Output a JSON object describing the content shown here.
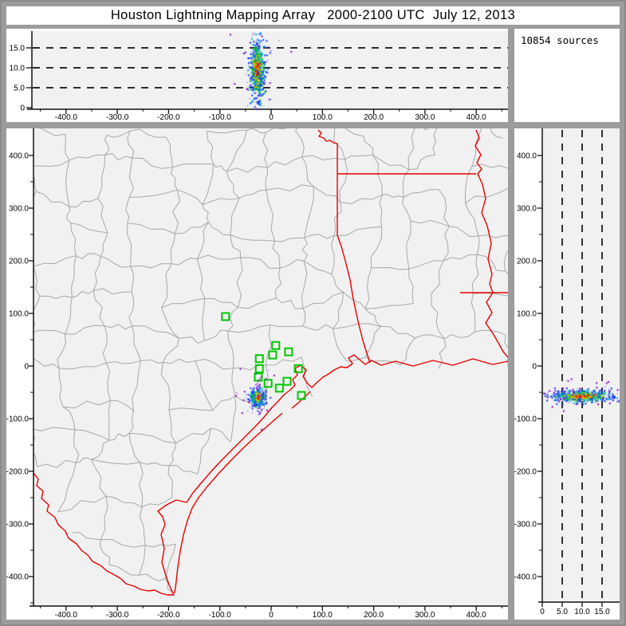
{
  "window": {
    "title": "Houston Lightning Mapping Array   2000-2100 UTC  July 12, 2013"
  },
  "sources_panel": {
    "label": "10854 sources",
    "count": 10854
  },
  "colors": {
    "plot_background": "#f1f1f1",
    "panel_background": "#ffffff",
    "frame_gray": "#9c9c9c",
    "county_line": "#a8a8a8",
    "state_border_red": "#e80000",
    "station_green": "#00c800",
    "axis_black": "#111111",
    "time_colormap": [
      "#8800cc",
      "#1133ee",
      "#00aadd",
      "#00c535",
      "#d8d800",
      "#ff9500",
      "#ee1500"
    ]
  },
  "chart_data": {
    "type": "scatter",
    "title": "Houston Lightning Mapping Array   2000-2100 UTC  July 12, 2013",
    "legend_position": "none",
    "grid": "dashed guides only",
    "panels": [
      {
        "id": "alt_vs_ew",
        "description": "Altitude (km) vs East-West distance (km): vertically elongated lightning source column near x=-28 km",
        "x_ticks": [
          {
            "v": -400,
            "t": "-400.0"
          },
          {
            "v": -300,
            "t": "-300.0"
          },
          {
            "v": -200,
            "t": "-200.0"
          },
          {
            "v": -100,
            "t": "-100.0"
          },
          {
            "v": 0,
            "t": "0"
          },
          {
            "v": 100,
            "t": "100.0"
          },
          {
            "v": 200,
            "t": "200.0"
          },
          {
            "v": 300,
            "t": "300.0"
          },
          {
            "v": 400,
            "t": "400.0"
          }
        ],
        "alt_ticks": [
          {
            "v": 0,
            "t": "0"
          },
          {
            "v": 5,
            "t": "5.0"
          },
          {
            "v": 10,
            "t": "10.0"
          },
          {
            "v": 15,
            "t": "15.0"
          }
        ],
        "dashed_alt_km": [
          5,
          10,
          15
        ],
        "x_range_km": [
          -465,
          462
        ],
        "alt_range_km": [
          0,
          19
        ],
        "cluster": {
          "x_km": -28,
          "alt_km": 9.6,
          "x_spread_km": 5.5,
          "alt_spread_km": 2.8,
          "n_points": 1400
        }
      },
      {
        "id": "sources_count",
        "text": "10854 sources",
        "value": 10854
      },
      {
        "id": "plan_view_map",
        "description": "Plan view, km east/north of array; gray county lines, red state/coast borders, green LMA station squares, lightning cluster near Houston",
        "x_ticks": [
          {
            "v": -400,
            "t": "-400.0"
          },
          {
            "v": -300,
            "t": "-300.0"
          },
          {
            "v": -200,
            "t": "-200.0"
          },
          {
            "v": -100,
            "t": "-100.0"
          },
          {
            "v": 0,
            "t": "0"
          },
          {
            "v": 100,
            "t": "100.0"
          },
          {
            "v": 200,
            "t": "200.0"
          },
          {
            "v": 300,
            "t": "300.0"
          },
          {
            "v": 400,
            "t": "400.0"
          }
        ],
        "y_ticks": [
          {
            "v": 400,
            "t": "400.0"
          },
          {
            "v": 300,
            "t": "300.0"
          },
          {
            "v": 200,
            "t": "200.0"
          },
          {
            "v": 100,
            "t": "100.0"
          },
          {
            "v": 0,
            "t": "0"
          },
          {
            "v": -100,
            "t": "-100.0"
          },
          {
            "v": -200,
            "t": "-200.0"
          },
          {
            "v": -300,
            "t": "-300.0"
          },
          {
            "v": -400,
            "t": "-400.0"
          }
        ],
        "x_range_km": [
          -463,
          462
        ],
        "y_range_km": [
          -456,
          451
        ],
        "stations_km": [
          [
            -89,
            94
          ],
          [
            9,
            39
          ],
          [
            34,
            27
          ],
          [
            3,
            21
          ],
          [
            -23,
            14
          ],
          [
            53,
            -5
          ],
          [
            -23,
            -5
          ],
          [
            -25,
            -21
          ],
          [
            31,
            -29
          ],
          [
            -6,
            -33
          ],
          [
            16,
            -42
          ],
          [
            59,
            -56
          ]
        ],
        "cluster": {
          "x_km": -28,
          "y_km": -58,
          "spread_km": 4.5,
          "n_points": 1200,
          "ns_trail_km": 30
        }
      },
      {
        "id": "alt_vs_ns",
        "description": "North-South distance (km) vs altitude (km): horizontally elongated lightning source layer near y=-56 km",
        "alt_ticks": [
          {
            "v": 0,
            "t": "0"
          },
          {
            "v": 5,
            "t": "5.0"
          },
          {
            "v": 10,
            "t": "10.0"
          },
          {
            "v": 15,
            "t": "15.0"
          }
        ],
        "y_ticks": [
          {
            "v": 400,
            "t": "400.0"
          },
          {
            "v": 300,
            "t": "300.0"
          },
          {
            "v": 200,
            "t": "200.0"
          },
          {
            "v": 100,
            "t": "100.0"
          },
          {
            "v": 0,
            "t": "0"
          },
          {
            "v": -100,
            "t": "-100.0"
          },
          {
            "v": -200,
            "t": "-200.0"
          },
          {
            "v": -300,
            "t": "-300.0"
          },
          {
            "v": -400,
            "t": "-400.0"
          }
        ],
        "dashed_alt_km": [
          5,
          10,
          15
        ],
        "alt_range_km": [
          0,
          19.4
        ],
        "y_range_km": [
          -456,
          451
        ],
        "cluster": {
          "y_km": -56,
          "alt_km": 9.8,
          "alt_spread_km": 2.8,
          "y_spread_km": 4,
          "n_points": 1400
        }
      }
    ]
  }
}
